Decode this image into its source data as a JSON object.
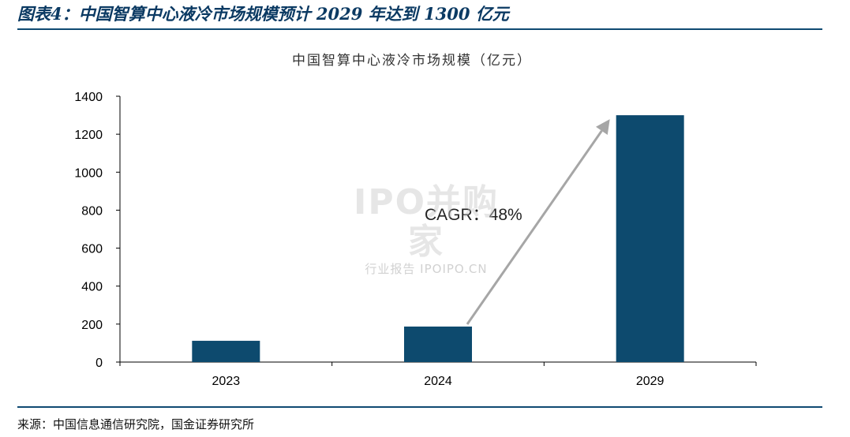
{
  "figure": {
    "header": "图表4：中国智算中心液冷市场规模预计 2029 年达到 1300 亿元",
    "source": "来源：中国信息通信研究院，国金证券研究所"
  },
  "watermark": {
    "main": "IPO并购家",
    "sub": "行业报告 IPOIPO.CN"
  },
  "chart_data": {
    "type": "bar",
    "title": "中国智算中心液冷市场规模（亿元）",
    "categories": [
      "2023",
      "2024",
      "2029"
    ],
    "values": [
      112,
      187,
      1300
    ],
    "ylim": [
      0,
      1400
    ],
    "yticks": [
      0,
      200,
      400,
      600,
      800,
      1000,
      1200,
      1400
    ],
    "grid": false,
    "annotation": {
      "text": "CAGR：48%",
      "from_category": "2024",
      "to_category": "2029"
    },
    "colors": {
      "bar": "#0d4a6e",
      "arrow": "#a6a6a6",
      "axis": "#000000",
      "text": "#000000"
    }
  }
}
